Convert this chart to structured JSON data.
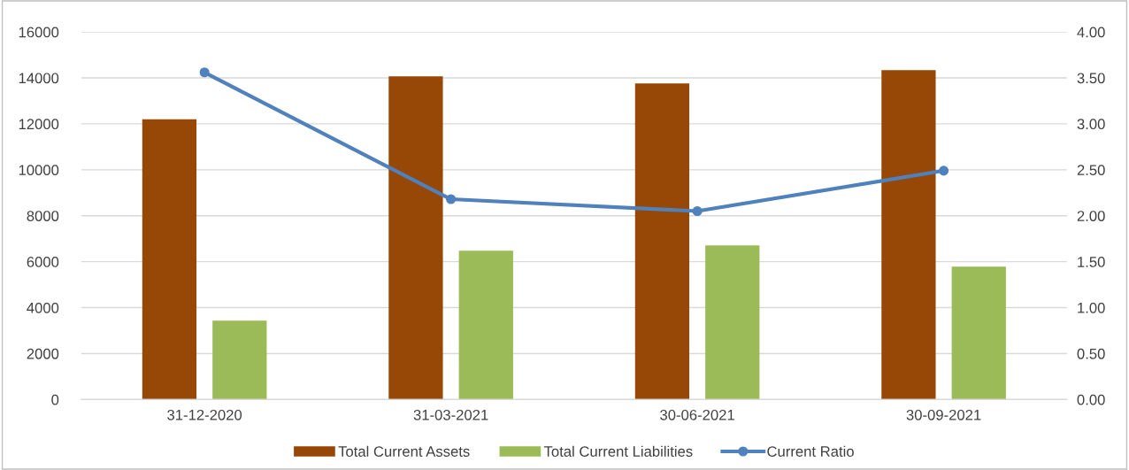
{
  "chart_data": {
    "type": "bar",
    "categories": [
      "31-12-2020",
      "31-03-2021",
      "30-06-2021",
      "30-09-2021"
    ],
    "series": [
      {
        "name": "Total Current Assets",
        "color": "#974706",
        "values": [
          12200,
          14070,
          13760,
          14340
        ]
      },
      {
        "name": "Total Current Liabilities",
        "color": "#9bbb59",
        "values": [
          3430,
          6480,
          6710,
          5780
        ]
      },
      {
        "name": "Current Ratio",
        "type": "line",
        "axis": "y2",
        "color": "#4f81bd",
        "marker": "circle",
        "values": [
          3.56,
          2.18,
          2.05,
          2.49
        ]
      }
    ],
    "ylim": [
      0,
      16000
    ],
    "yticks": [
      0,
      2000,
      4000,
      6000,
      8000,
      10000,
      12000,
      14000,
      16000
    ],
    "y2lim": [
      0,
      4
    ],
    "y2ticks": [
      {
        "value": 0,
        "label": "0.00"
      },
      {
        "value": 0.5,
        "label": "0.50"
      },
      {
        "value": 1,
        "label": "1.00"
      },
      {
        "value": 1.5,
        "label": "1.50"
      },
      {
        "value": 2,
        "label": "2.00"
      },
      {
        "value": 2.5,
        "label": "2.50"
      },
      {
        "value": 3,
        "label": "3.00"
      },
      {
        "value": 3.5,
        "label": "3.50"
      },
      {
        "value": 4,
        "label": "4.00"
      }
    ],
    "grid": "y",
    "legend": "bottom"
  }
}
